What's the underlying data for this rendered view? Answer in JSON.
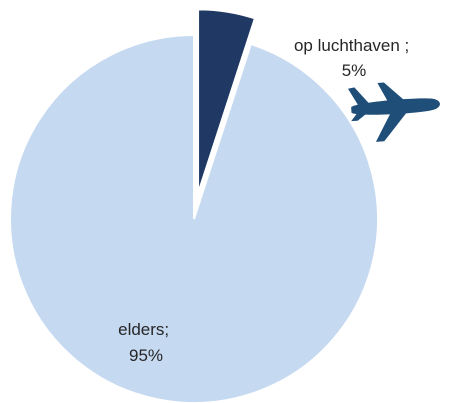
{
  "chart_data": {
    "type": "pie",
    "title": "",
    "slices": [
      {
        "name": "op luchthaven",
        "value": 5,
        "label_lines": [
          "op luchthaven ;",
          "5%"
        ],
        "color": "#1f3864",
        "exploded": true
      },
      {
        "name": "elders",
        "value": 95,
        "label_lines": [
          "elders;",
          "95%"
        ],
        "color": "#c5d9f1",
        "exploded": false
      }
    ],
    "legend": "none"
  },
  "decorations": {
    "airplane_icon": "airplane-icon",
    "airplane_color": "#1f4e79"
  }
}
